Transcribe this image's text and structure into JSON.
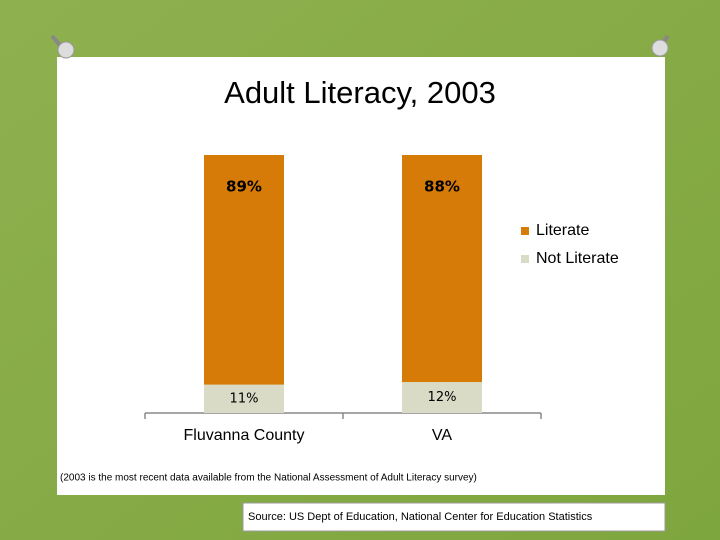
{
  "chart_data": {
    "type": "stacked_bar",
    "title": "Adult Literacy, 2003",
    "categories": [
      "Fluvanna County",
      "VA"
    ],
    "series": [
      {
        "name": "Literate",
        "color": "#d67a08",
        "values": [
          89,
          88
        ],
        "value_labels": [
          "89%",
          "88%"
        ]
      },
      {
        "name": "Not Literate",
        "color": "#d9dbc7",
        "values": [
          11,
          12
        ],
        "value_labels": [
          "11%",
          "12%"
        ]
      }
    ],
    "ylim": [
      0,
      100
    ],
    "legend": "right",
    "note": "(2003 is the most recent data available from the National Assessment of Adult Literacy survey)",
    "source": "Source: US Dept of Education, National Center for Education Statistics"
  }
}
